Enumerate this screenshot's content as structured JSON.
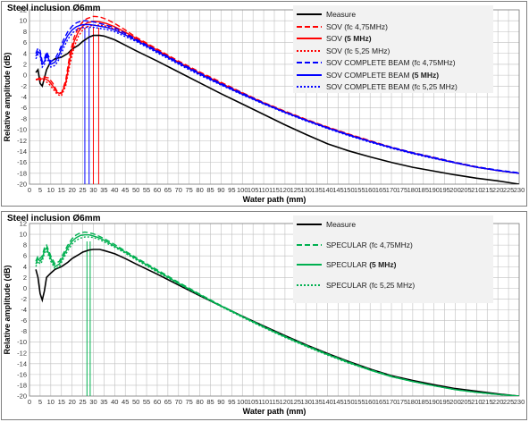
{
  "chart_data": [
    {
      "type": "line",
      "title": "Steel inclusion Ø6mm",
      "xlabel": "Water path (mm)",
      "ylabel": "Relative amplitude (dB)",
      "xlim": [
        0,
        230
      ],
      "ylim": [
        -20,
        12
      ],
      "xticks": [
        0,
        5,
        10,
        15,
        20,
        25,
        30,
        35,
        40,
        45,
        50,
        55,
        60,
        65,
        70,
        75,
        80,
        85,
        90,
        95,
        100,
        105,
        110,
        115,
        120,
        125,
        130,
        135,
        140,
        145,
        150,
        155,
        160,
        165,
        170,
        175,
        180,
        185,
        190,
        195,
        200,
        205,
        210,
        215,
        220,
        225,
        230
      ],
      "yticks": [
        -20,
        -18,
        -16,
        -14,
        -12,
        -10,
        -8,
        -6,
        -4,
        -2,
        0,
        2,
        4,
        6,
        8,
        10,
        12
      ],
      "grid": true,
      "legend_position": "top-right",
      "series": [
        {
          "name": "Measure",
          "name_bold": "",
          "color": "#000000",
          "dash": "solid",
          "x": [
            3,
            4,
            5,
            6,
            7,
            8,
            10,
            12,
            15,
            18,
            20,
            23,
            25,
            28,
            30,
            33,
            35,
            40,
            45,
            50,
            60,
            70,
            80,
            90,
            100,
            110,
            120,
            130,
            140,
            150,
            160,
            170,
            180,
            190,
            200,
            210,
            220,
            230
          ],
          "y": [
            0.5,
            1,
            -1.5,
            -2,
            -0.5,
            1,
            2.5,
            3,
            3.3,
            4,
            4.8,
            5.5,
            6.2,
            7,
            7.3,
            7.3,
            7.2,
            6.5,
            5.5,
            4.5,
            2.6,
            0.6,
            -1.4,
            -3.4,
            -5.3,
            -7.2,
            -9.1,
            -10.9,
            -12.6,
            -13.9,
            -15,
            -16,
            -16.9,
            -17.6,
            -18.3,
            -18.9,
            -19.4,
            -20
          ]
        },
        {
          "name": "SOV (fc 4,75MHz)",
          "name_bold": "",
          "color": "#ff0000",
          "dash": "6,3",
          "x": [
            3,
            5,
            7,
            9,
            11,
            13,
            15,
            17,
            19,
            21,
            23,
            25,
            27,
            30,
            33,
            36,
            40,
            45,
            50,
            60,
            70,
            80,
            90,
            100,
            110,
            120,
            130,
            140,
            150,
            160,
            170,
            180,
            190,
            200,
            210,
            220,
            230
          ],
          "y": [
            -0.8,
            -0.5,
            -0.3,
            -0.5,
            -1.5,
            -3,
            -3.3,
            -1,
            4,
            7,
            8.8,
            9.8,
            10.4,
            10.8,
            10.7,
            10.3,
            9.5,
            8.3,
            7,
            4.8,
            2.6,
            0.6,
            -1.3,
            -3.2,
            -5,
            -6.6,
            -8.1,
            -9.5,
            -10.8,
            -12,
            -13.2,
            -14.2,
            -15.1,
            -16,
            -16.8,
            -17.5,
            -18
          ]
        },
        {
          "name": "SOV ",
          "name_bold": "(5 MHz)",
          "color": "#ff0000",
          "dash": "solid",
          "x": [
            3,
            5,
            7,
            9,
            11,
            13,
            15,
            17,
            19,
            21,
            23,
            25,
            27,
            30,
            33,
            36,
            40,
            45,
            50,
            60,
            70,
            80,
            90,
            100,
            110,
            120,
            130,
            140,
            150,
            160,
            170,
            180,
            190,
            200,
            210,
            220,
            230
          ],
          "y": [
            -0.8,
            -0.7,
            -0.6,
            -1,
            -2,
            -3.2,
            -3.4,
            -1.5,
            3,
            6.2,
            8,
            9,
            9.6,
            9.9,
            9.8,
            9.5,
            8.9,
            7.9,
            6.8,
            4.6,
            2.4,
            0.4,
            -1.5,
            -3.3,
            -5.1,
            -6.7,
            -8.2,
            -9.6,
            -10.9,
            -12.1,
            -13.3,
            -14.3,
            -15.2,
            -16.1,
            -16.9,
            -17.5,
            -18
          ]
        },
        {
          "name": "SOV (fc 5,25 MHz)",
          "name_bold": "",
          "color": "#ff0000",
          "dash": "2,2",
          "x": [
            3,
            5,
            7,
            9,
            11,
            13,
            15,
            17,
            19,
            21,
            23,
            25,
            27,
            30,
            33,
            36,
            40,
            45,
            50,
            60,
            70,
            80,
            90,
            100,
            110,
            120,
            130,
            140,
            150,
            160,
            170,
            180,
            190,
            200,
            210,
            220,
            230
          ],
          "y": [
            -0.8,
            -0.9,
            -1,
            -1.5,
            -2.5,
            -3.5,
            -3.8,
            -2,
            2,
            5.2,
            7.2,
            8.3,
            8.9,
            9.2,
            9.2,
            9,
            8.5,
            7.6,
            6.6,
            4.4,
            2.3,
            0.3,
            -1.6,
            -3.4,
            -5.2,
            -6.8,
            -8.3,
            -9.7,
            -11,
            -12.2,
            -13.3,
            -14.3,
            -15.2,
            -16.1,
            -16.9,
            -17.5,
            -18
          ]
        },
        {
          "name": "SOV COMPLETE BEAM  (fc 4,75MHz)",
          "name_bold": "",
          "color": "#0000ff",
          "dash": "6,3",
          "x": [
            3,
            4,
            5,
            6,
            7,
            8,
            9,
            10,
            12,
            14,
            16,
            18,
            20,
            22,
            24,
            26,
            28,
            30,
            33,
            36,
            40,
            45,
            50,
            60,
            70,
            80,
            90,
            100,
            110,
            120,
            130,
            140,
            150,
            160,
            170,
            180,
            190,
            200,
            210,
            220,
            230
          ],
          "y": [
            4,
            5,
            4.5,
            2.5,
            3,
            4.3,
            3.5,
            2.5,
            3,
            4.5,
            6.5,
            8,
            9,
            9.6,
            9.9,
            10,
            9.9,
            9.8,
            9.5,
            9.2,
            8.7,
            7.7,
            6.6,
            4.5,
            2.4,
            0.4,
            -1.5,
            -3.3,
            -5.1,
            -6.7,
            -8.2,
            -9.6,
            -10.9,
            -12.1,
            -13.2,
            -14.2,
            -15.1,
            -16,
            -16.8,
            -17.4,
            -17.9
          ]
        },
        {
          "name": "SOV COMPLETE BEAM ",
          "name_bold": "(5 MHz)",
          "color": "#0000ff",
          "dash": "solid",
          "x": [
            3,
            4,
            5,
            6,
            7,
            8,
            9,
            10,
            12,
            14,
            16,
            18,
            20,
            22,
            24,
            26,
            28,
            30,
            33,
            36,
            40,
            45,
            50,
            60,
            70,
            80,
            90,
            100,
            110,
            120,
            130,
            140,
            150,
            160,
            170,
            180,
            190,
            200,
            210,
            220,
            230
          ],
          "y": [
            3.5,
            4.3,
            4,
            2,
            2.5,
            3.8,
            3,
            2,
            2.4,
            3.8,
            5.8,
            7.3,
            8.3,
            8.9,
            9.2,
            9.3,
            9.3,
            9.2,
            9,
            8.8,
            8.3,
            7.4,
            6.4,
            4.3,
            2.2,
            0.2,
            -1.7,
            -3.5,
            -5.2,
            -6.8,
            -8.3,
            -9.7,
            -11,
            -12.2,
            -13.3,
            -14.3,
            -15.2,
            -16.1,
            -16.9,
            -17.5,
            -18
          ]
        },
        {
          "name": "SOV COMPLETE BEAM  (fc 5,25 MHz)",
          "name_bold": "",
          "color": "#0000ff",
          "dash": "2,2",
          "x": [
            3,
            4,
            5,
            6,
            7,
            8,
            9,
            10,
            12,
            14,
            16,
            18,
            20,
            22,
            24,
            26,
            28,
            30,
            33,
            36,
            40,
            45,
            50,
            60,
            70,
            80,
            90,
            100,
            110,
            120,
            130,
            140,
            150,
            160,
            170,
            180,
            190,
            200,
            210,
            220,
            230
          ],
          "y": [
            3,
            3.8,
            3.5,
            1.5,
            2,
            3.3,
            2.5,
            1.5,
            1.8,
            3,
            5,
            6.6,
            7.7,
            8.3,
            8.7,
            8.8,
            8.8,
            8.8,
            8.6,
            8.4,
            8,
            7.1,
            6.2,
            4.1,
            2,
            0,
            -1.8,
            -3.6,
            -5.3,
            -6.9,
            -8.4,
            -9.8,
            -11.1,
            -12.3,
            -13.4,
            -14.4,
            -15.3,
            -16.1,
            -16.9,
            -17.5,
            -18
          ]
        }
      ],
      "vlines": [
        {
          "x": 26,
          "color": "#0000ff"
        },
        {
          "x": 28,
          "color": "#0000ff"
        },
        {
          "x": 30,
          "color": "#ff0000"
        },
        {
          "x": 32.5,
          "color": "#ff0000"
        }
      ]
    },
    {
      "type": "line",
      "title": "Steel inclusion Ø6mm",
      "xlabel": "Water path (mm)",
      "ylabel": "Relative amplitude (dB)",
      "xlim": [
        0,
        230
      ],
      "ylim": [
        -20,
        12
      ],
      "xticks": [
        0,
        5,
        10,
        15,
        20,
        25,
        30,
        35,
        40,
        45,
        50,
        55,
        60,
        65,
        70,
        75,
        80,
        85,
        90,
        95,
        100,
        105,
        110,
        115,
        120,
        125,
        130,
        135,
        140,
        145,
        150,
        155,
        160,
        165,
        170,
        175,
        180,
        185,
        190,
        195,
        200,
        205,
        210,
        215,
        220,
        225,
        230
      ],
      "yticks": [
        -20,
        -18,
        -16,
        -14,
        -12,
        -10,
        -8,
        -6,
        -4,
        -2,
        0,
        2,
        4,
        6,
        8,
        10,
        12
      ],
      "grid": true,
      "legend_position": "top-right",
      "series": [
        {
          "name": "Measure",
          "name_bold": "",
          "color": "#000000",
          "dash": "solid",
          "x": [
            3,
            4,
            5,
            6,
            7,
            8,
            10,
            12,
            15,
            18,
            20,
            23,
            25,
            28,
            30,
            33,
            35,
            40,
            45,
            50,
            60,
            70,
            80,
            90,
            100,
            110,
            120,
            130,
            140,
            150,
            160,
            170,
            180,
            190,
            200,
            210,
            220,
            230
          ],
          "y": [
            3.5,
            2,
            -1,
            -2.2,
            -0.5,
            2,
            2.8,
            3.5,
            4,
            4.8,
            5.5,
            6.2,
            6.7,
            7.1,
            7.2,
            7.2,
            7,
            6.4,
            5.5,
            4.5,
            2.6,
            0.6,
            -1.4,
            -3.3,
            -5.2,
            -7,
            -8.8,
            -10.5,
            -12.1,
            -13.6,
            -15,
            -16.2,
            -17.1,
            -17.9,
            -18.6,
            -19.1,
            -19.6,
            -20
          ]
        },
        {
          "name": "SPECULAR  (fc 4,75MHz)",
          "name_bold": "",
          "color": "#00b050",
          "dash": "6,3",
          "x": [
            3,
            4,
            5,
            6,
            7,
            8,
            10,
            12,
            14,
            16,
            18,
            20,
            22,
            24,
            26,
            28,
            30,
            33,
            36,
            40,
            45,
            50,
            60,
            70,
            80,
            90,
            100,
            110,
            120,
            130,
            140,
            150,
            160,
            170,
            180,
            190,
            200,
            210,
            220,
            230
          ],
          "y": [
            5,
            6,
            5.5,
            6,
            7.5,
            8,
            6,
            4.5,
            5,
            6.5,
            8,
            9.2,
            9.9,
            10.3,
            10.4,
            10.3,
            10.1,
            9.6,
            9,
            8.1,
            6.9,
            5.7,
            3.4,
            1.1,
            -1.1,
            -3.2,
            -5.2,
            -7.1,
            -8.9,
            -10.6,
            -12.2,
            -13.7,
            -15.1,
            -16.3,
            -17.3,
            -18.1,
            -18.8,
            -19.3,
            -19.7,
            -20
          ]
        },
        {
          "name": "SPECULAR ",
          "name_bold": "(5 MHz)",
          "color": "#00b050",
          "dash": "solid",
          "x": [
            3,
            4,
            5,
            6,
            7,
            8,
            10,
            12,
            14,
            16,
            18,
            20,
            22,
            24,
            26,
            28,
            30,
            33,
            36,
            40,
            45,
            50,
            60,
            70,
            80,
            90,
            100,
            110,
            120,
            130,
            140,
            150,
            160,
            170,
            180,
            190,
            200,
            210,
            220,
            230
          ],
          "y": [
            4.5,
            5.5,
            5,
            5.5,
            7,
            7.5,
            5.5,
            4,
            4.5,
            6,
            7.5,
            8.7,
            9.4,
            9.8,
            9.9,
            9.9,
            9.7,
            9.3,
            8.7,
            7.8,
            6.7,
            5.5,
            3.2,
            0.9,
            -1.2,
            -3.3,
            -5.3,
            -7.2,
            -9,
            -10.7,
            -12.3,
            -13.8,
            -15.2,
            -16.4,
            -17.3,
            -18.1,
            -18.8,
            -19.3,
            -19.7,
            -20
          ]
        },
        {
          "name": "SPECULAR (fc 5,25 MHz)",
          "name_bold": "",
          "color": "#00b050",
          "dash": "2,2",
          "x": [
            3,
            4,
            5,
            6,
            7,
            8,
            10,
            12,
            14,
            16,
            18,
            20,
            22,
            24,
            26,
            28,
            30,
            33,
            36,
            40,
            45,
            50,
            60,
            70,
            80,
            90,
            100,
            110,
            120,
            130,
            140,
            150,
            160,
            170,
            180,
            190,
            200,
            210,
            220,
            230
          ],
          "y": [
            4,
            5,
            4.5,
            5,
            6.5,
            7,
            5,
            3.6,
            4,
            5.5,
            7,
            8.2,
            8.9,
            9.3,
            9.5,
            9.5,
            9.4,
            9,
            8.4,
            7.6,
            6.5,
            5.3,
            3,
            0.8,
            -1.3,
            -3.4,
            -5.4,
            -7.3,
            -9.1,
            -10.8,
            -12.4,
            -13.9,
            -15.2,
            -16.4,
            -17.3,
            -18.1,
            -18.8,
            -19.3,
            -19.7,
            -20
          ]
        }
      ],
      "vlines": [
        {
          "x": 27,
          "color": "#00b050"
        },
        {
          "x": 28.5,
          "color": "#00b050"
        }
      ]
    }
  ]
}
